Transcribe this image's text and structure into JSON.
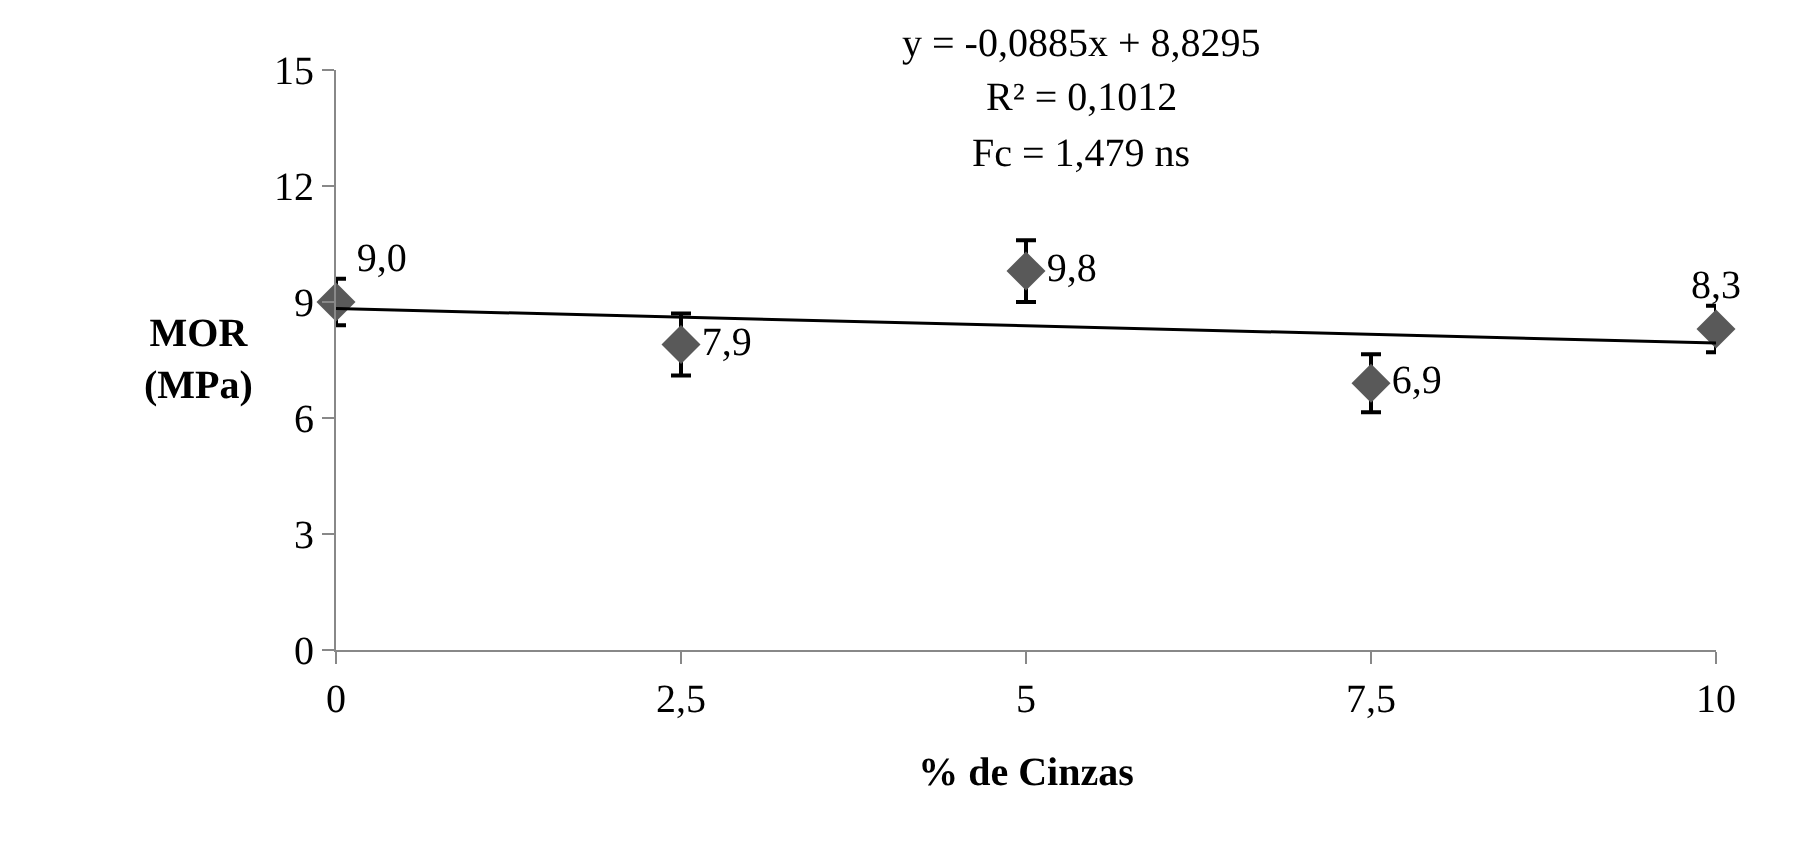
{
  "chart_data": {
    "type": "scatter",
    "xlabel": "% de Cinzas",
    "ylabel": "MOR (MPa)",
    "x": [
      0,
      2.5,
      5,
      7.5,
      10
    ],
    "series": [
      {
        "color": "#595959",
        "marker": "diamond",
        "values": [
          9.0,
          7.9,
          9.8,
          6.9,
          8.3
        ],
        "errors": [
          0.6,
          0.8,
          0.8,
          0.75,
          0.6
        ],
        "value_labels": [
          "9,0",
          "7,9",
          "9,8",
          "6,9",
          "8,3"
        ]
      },
      {
        "type": "line",
        "color": "#000000",
        "x": [
          0,
          10
        ],
        "values": [
          8.83,
          7.94
        ],
        "marker": "none",
        "line_style": "solid"
      }
    ],
    "xlim": [
      0,
      10
    ],
    "xticks": [
      0,
      {
        "value": 2.5,
        "label": "2,5"
      },
      5,
      {
        "value": 7.5,
        "label": "7,5"
      },
      10
    ],
    "ylim": [
      0,
      15
    ],
    "yticks": [
      0,
      3,
      6,
      9,
      12,
      15
    ],
    "grid": false,
    "annotations": [
      "y = -0,0885x + 8,8295",
      "R² = 0,1012",
      "Fc = 1,479 ns"
    ]
  }
}
